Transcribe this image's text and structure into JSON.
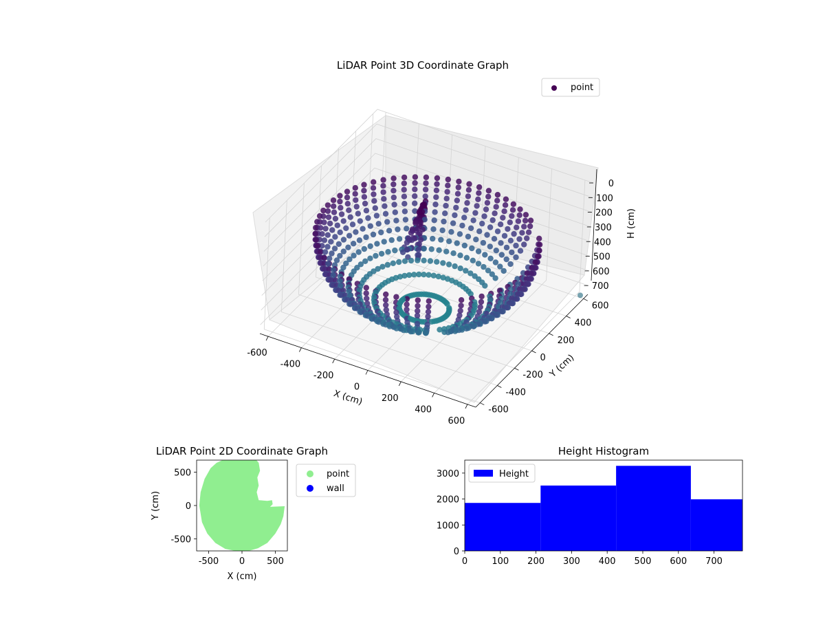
{
  "figure": {
    "background": "#ffffff"
  },
  "chart_data": [
    {
      "type": "scatter",
      "projection": "3d",
      "title": "LiDAR Point 3D Coordinate Graph",
      "xlabel": "X (cm)",
      "ylabel": "Y (cm)",
      "zlabel": "H (cm)",
      "xlim": [
        -650,
        650
      ],
      "ylim": [
        -650,
        650
      ],
      "zlim": [
        760,
        0
      ],
      "xticks": [
        "-600",
        "-400",
        "-200",
        "0",
        "200",
        "400",
        "600"
      ],
      "yticks": [
        "-600",
        "-400",
        "-200",
        "0",
        "200",
        "400",
        "600"
      ],
      "zticks": [
        "0",
        "100",
        "200",
        "300",
        "400",
        "500",
        "600",
        "700"
      ],
      "z_inverted": true,
      "colormap": "viridis",
      "grid": true,
      "legend": {
        "position": "upper-right",
        "entries": [
          {
            "name": "point",
            "color": "#440154"
          }
        ]
      },
      "series": [
        {
          "name": "point",
          "shape": "bowl-shaped ring of points around the scanner (approx. radius 600 cm, height 0-760 cm) with a cluster of interior points near (-100, 150)",
          "approx_points": [
            [
              -600,
              0,
              250
            ],
            [
              -560,
              220,
              250
            ],
            [
              -420,
              430,
              250
            ],
            [
              -200,
              570,
              250
            ],
            [
              0,
              600,
              250
            ],
            [
              200,
              570,
              250
            ],
            [
              420,
              430,
              250
            ],
            [
              600,
              0,
              300
            ],
            [
              560,
              -220,
              320
            ],
            [
              420,
              -430,
              400
            ],
            [
              200,
              -570,
              500
            ],
            [
              0,
              -600,
              640
            ],
            [
              -200,
              -570,
              560
            ],
            [
              -420,
              -430,
              430
            ],
            [
              -560,
              -220,
              330
            ],
            [
              -100,
              150,
              150
            ],
            [
              -80,
              120,
              250
            ],
            [
              -60,
              100,
              320
            ],
            [
              -40,
              80,
              400
            ],
            [
              0,
              0,
              720
            ],
            [
              620,
              620,
              760
            ]
          ]
        }
      ]
    },
    {
      "type": "scatter",
      "title": "LiDAR Point 2D Coordinate Graph",
      "xlabel": "X (cm)",
      "ylabel": "Y (cm)",
      "xlim": [
        -680,
        680
      ],
      "ylim": [
        -680,
        680
      ],
      "xticks": [
        -500,
        0,
        500
      ],
      "yticks": [
        -500,
        0,
        500
      ],
      "legend": {
        "position": "outside-right",
        "entries": [
          {
            "name": "point",
            "color": "#90ee90"
          },
          {
            "name": "wall",
            "color": "#0000ff"
          }
        ]
      },
      "series": [
        {
          "name": "point",
          "color": "#90ee90",
          "region_outline": [
            [
              -640,
              0
            ],
            [
              -620,
              200
            ],
            [
              -560,
              400
            ],
            [
              -470,
              560
            ],
            [
              -380,
              640
            ],
            [
              -250,
              700
            ],
            [
              200,
              700
            ],
            [
              250,
              640
            ],
            [
              270,
              520
            ],
            [
              230,
              420
            ],
            [
              250,
              300
            ],
            [
              220,
              200
            ],
            [
              250,
              80
            ],
            [
              380,
              70
            ],
            [
              450,
              80
            ],
            [
              460,
              20
            ],
            [
              420,
              -20
            ],
            [
              640,
              -10
            ],
            [
              620,
              -160
            ],
            [
              580,
              -280
            ],
            [
              500,
              -420
            ],
            [
              380,
              -560
            ],
            [
              240,
              -640
            ],
            [
              100,
              -680
            ],
            [
              -100,
              -680
            ],
            [
              -250,
              -650
            ],
            [
              -400,
              -560
            ],
            [
              -520,
              -420
            ],
            [
              -600,
              -250
            ]
          ]
        },
        {
          "name": "wall",
          "color": "#0000ff",
          "points": []
        }
      ]
    },
    {
      "type": "bar",
      "subtype": "histogram",
      "title": "Height Histogram",
      "xlim": [
        0,
        780
      ],
      "ylim": [
        0,
        3500
      ],
      "xticks": [
        0,
        100,
        200,
        300,
        400,
        500,
        600,
        700
      ],
      "yticks": [
        0,
        1000,
        2000,
        3000
      ],
      "legend": {
        "position": "upper-left",
        "entries": [
          {
            "name": "Height",
            "color": "#0000ff"
          }
        ]
      },
      "bins": [
        {
          "x0": 0,
          "x1": 213,
          "value": 1850
        },
        {
          "x0": 213,
          "x1": 425,
          "value": 2520
        },
        {
          "x0": 425,
          "x1": 635,
          "value": 3280
        },
        {
          "x0": 635,
          "x1": 780,
          "value": 1990
        }
      ],
      "series": [
        {
          "name": "Height",
          "color": "#0000ff",
          "values": [
            1850,
            2520,
            3280,
            1990
          ]
        }
      ]
    }
  ]
}
